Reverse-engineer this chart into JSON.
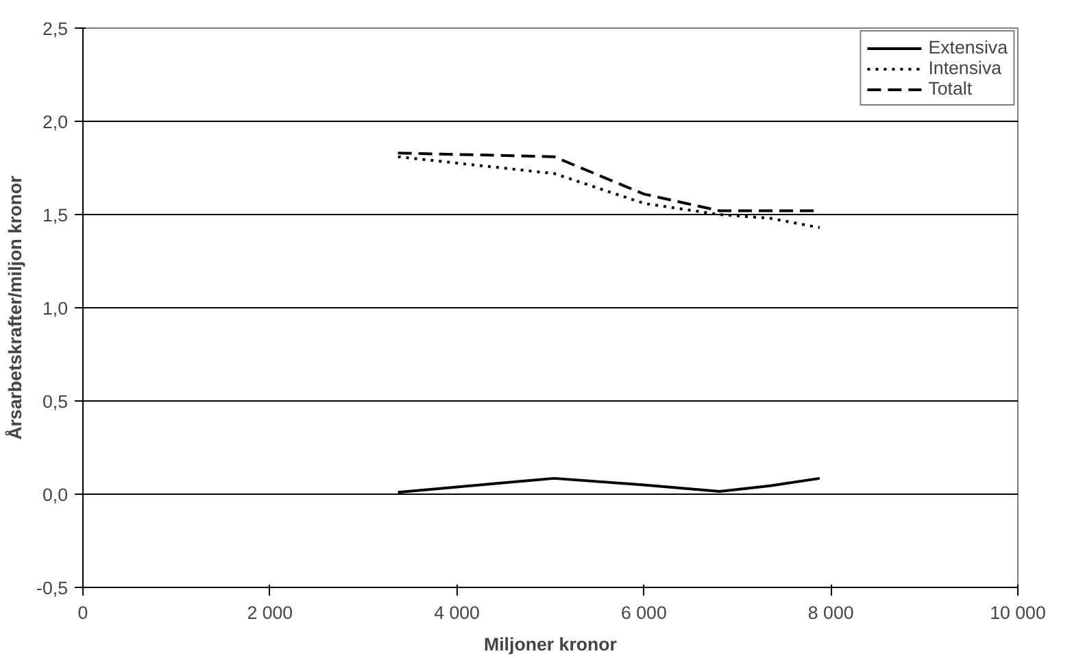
{
  "chart_data": {
    "type": "line",
    "xlabel": "Miljoner kronor",
    "ylabel": "Årsarbetskrafter/miljon kronor",
    "x": [
      3370,
      5040,
      6000,
      6810,
      7350,
      7880
    ],
    "series": [
      {
        "name": "Extensiva",
        "color": "#000000",
        "line_style": "solid",
        "values": [
          0.01,
          0.085,
          0.05,
          0.015,
          0.045,
          0.085
        ]
      },
      {
        "name": "Intensiva",
        "color": "#000000",
        "line_style": "dotted",
        "values": [
          1.81,
          1.72,
          1.56,
          1.5,
          1.48,
          1.43
        ]
      },
      {
        "name": "Totalt",
        "color": "#000000",
        "line_style": "dashed",
        "values": [
          1.83,
          1.81,
          1.61,
          1.52,
          1.52,
          1.52
        ]
      }
    ],
    "xlim": [
      0,
      10000
    ],
    "xticks": [
      {
        "value": 0,
        "label": "0"
      },
      {
        "value": 2000,
        "label": "2 000"
      },
      {
        "value": 4000,
        "label": "4 000"
      },
      {
        "value": 6000,
        "label": "6 000"
      },
      {
        "value": 8000,
        "label": "8 000"
      },
      {
        "value": 10000,
        "label": "10 000"
      }
    ],
    "ylim": [
      -0.5,
      2.5
    ],
    "yticks": [
      {
        "value": -0.5,
        "label": "-0,5"
      },
      {
        "value": 0,
        "label": "0,0"
      },
      {
        "value": 0.5,
        "label": "0,5"
      },
      {
        "value": 1,
        "label": "1,0"
      },
      {
        "value": 1.5,
        "label": "1,5"
      },
      {
        "value": 2,
        "label": "2,0"
      },
      {
        "value": 2.5,
        "label": "2,5"
      }
    ],
    "grid": "y",
    "legend": "top right",
    "marker": "none"
  }
}
